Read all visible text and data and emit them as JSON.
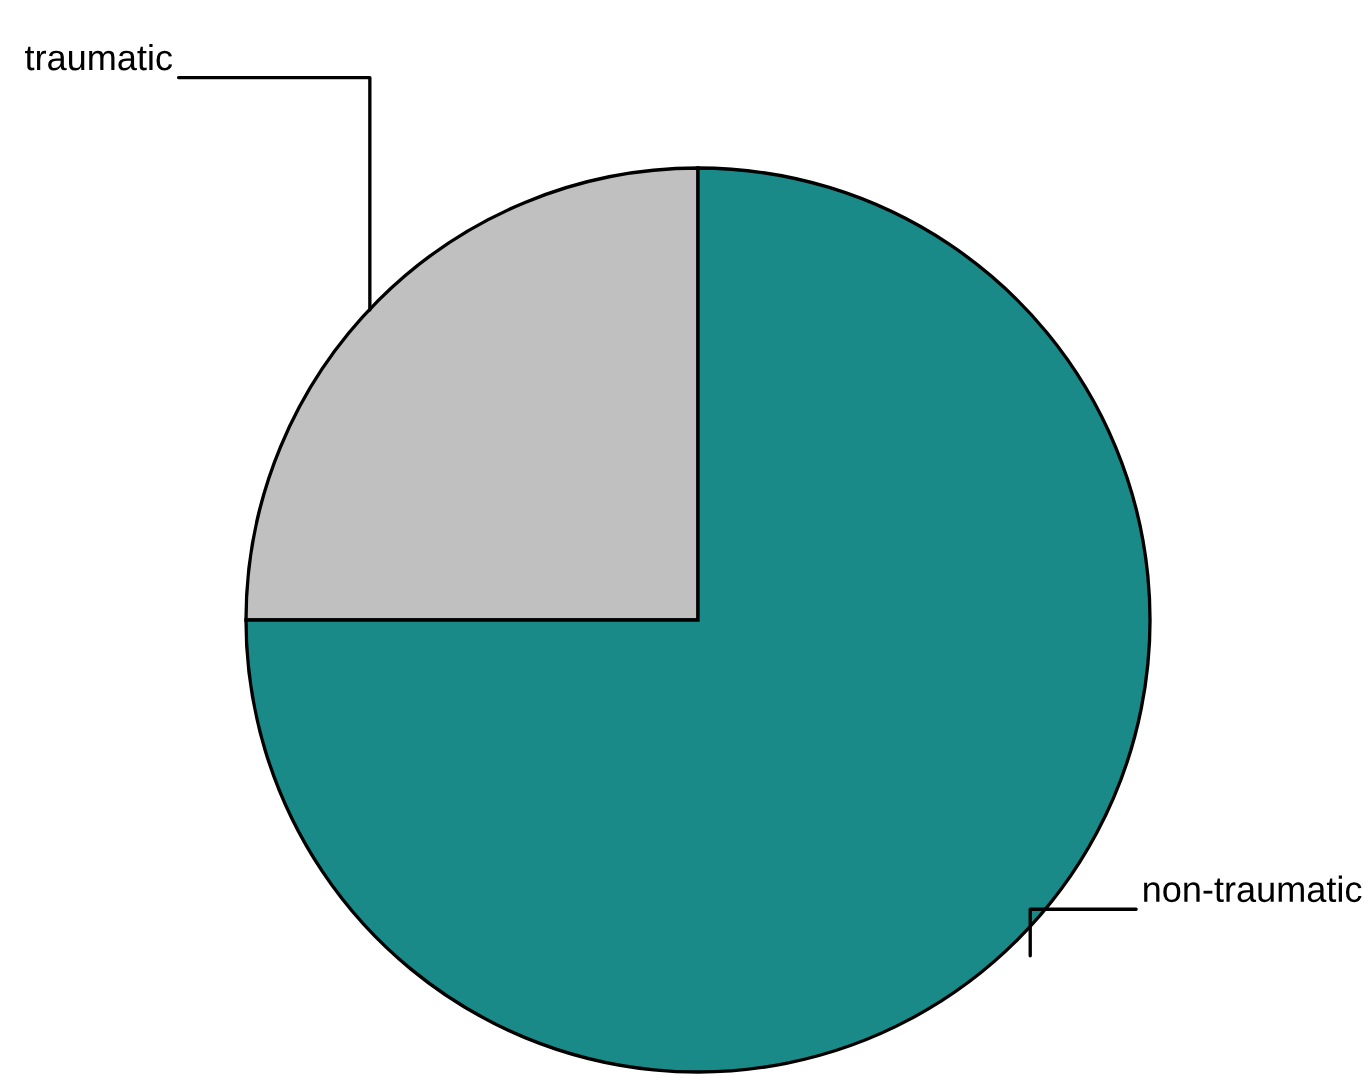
{
  "chart_data": {
    "type": "pie",
    "categories": [
      "traumatic",
      "non-traumatic"
    ],
    "values": [
      25,
      75
    ],
    "colors": [
      "#c0c0c0",
      "#1a8a88"
    ],
    "legend": false
  }
}
